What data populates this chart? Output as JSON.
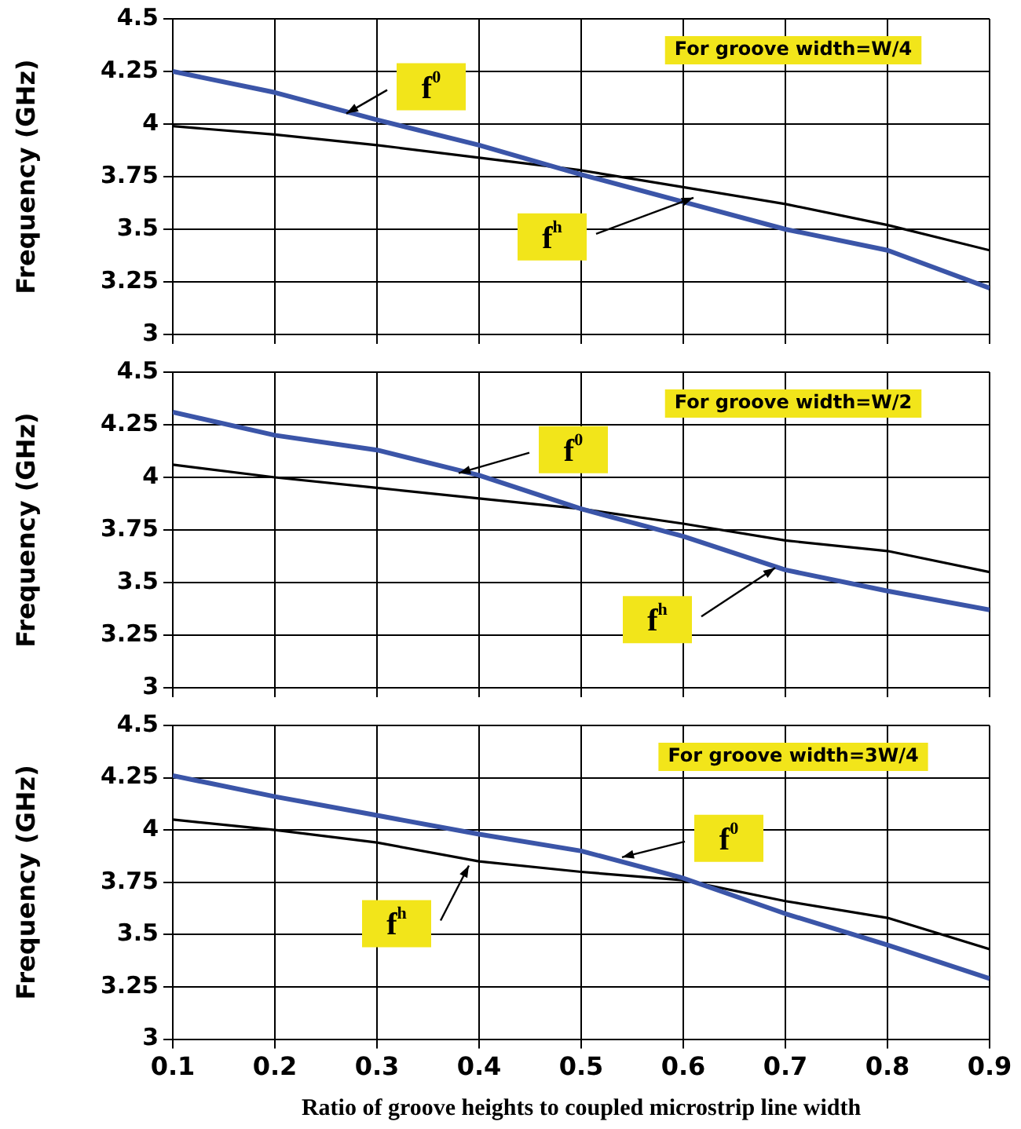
{
  "chart_data": [
    {
      "type": "line",
      "x": [
        0.1,
        0.2,
        0.3,
        0.4,
        0.5,
        0.6,
        0.7,
        0.8,
        0.9
      ],
      "ylabel": "Frequency (GHz)",
      "xlim": [
        0.1,
        0.9
      ],
      "xticks": [
        0.1,
        0.2,
        0.3,
        0.4,
        0.5,
        0.6,
        0.7,
        0.8,
        0.9
      ],
      "ylim": [
        3,
        4.5
      ],
      "yticks": [
        3,
        3.25,
        3.5,
        3.75,
        4,
        4.25,
        4.5
      ],
      "grid": true,
      "legend": false,
      "marker": "none",
      "tick_labels": "y",
      "series": [
        {
          "color": "#3b55a8",
          "values": [
            4.25,
            4.15,
            4.02,
            3.9,
            3.76,
            3.63,
            3.5,
            3.4,
            3.22
          ]
        },
        {
          "color": "#000000",
          "values": [
            3.99,
            3.95,
            3.9,
            3.84,
            3.78,
            3.7,
            3.62,
            3.52,
            3.4
          ]
        }
      ],
      "annotations": [
        "For groove width=W/4",
        {
          "text": "f$^{0}$",
          "x": 0.27,
          "y": 4.05
        },
        {
          "text": "f$^{h}$",
          "x": 0.61,
          "y": 3.65
        }
      ]
    },
    {
      "type": "line",
      "x": [
        0.1,
        0.2,
        0.3,
        0.4,
        0.5,
        0.6,
        0.7,
        0.8,
        0.9
      ],
      "ylabel": "Frequency (GHz)",
      "xlim": [
        0.1,
        0.9
      ],
      "xticks": [
        0.1,
        0.2,
        0.3,
        0.4,
        0.5,
        0.6,
        0.7,
        0.8,
        0.9
      ],
      "ylim": [
        3,
        4.5
      ],
      "yticks": [
        3,
        3.25,
        3.5,
        3.75,
        4,
        4.25,
        4.5
      ],
      "grid": true,
      "legend": false,
      "marker": "none",
      "tick_labels": "y",
      "series": [
        {
          "color": "#3b55a8",
          "values": [
            4.31,
            4.2,
            4.13,
            4.01,
            3.85,
            3.72,
            3.56,
            3.46,
            3.37
          ]
        },
        {
          "color": "#000000",
          "values": [
            4.06,
            4.0,
            3.95,
            3.9,
            3.85,
            3.78,
            3.7,
            3.65,
            3.55
          ]
        }
      ],
      "annotations": [
        "For groove width=W/2",
        {
          "text": "f$^{0}$",
          "x": 0.38,
          "y": 4.02
        },
        {
          "text": "f$^{h}$",
          "x": 0.69,
          "y": 3.57
        }
      ]
    },
    {
      "type": "line",
      "x": [
        0.1,
        0.2,
        0.3,
        0.4,
        0.5,
        0.6,
        0.7,
        0.8,
        0.9
      ],
      "xlabel": "Ratio of groove heights to coupled microstrip line width",
      "ylabel": "Frequency (GHz)",
      "xlim": [
        0.1,
        0.9
      ],
      "xticks": [
        0.1,
        0.2,
        0.3,
        0.4,
        0.5,
        0.6,
        0.7,
        0.8,
        0.9
      ],
      "ylim": [
        3,
        4.5
      ],
      "yticks": [
        3,
        3.25,
        3.5,
        3.75,
        4,
        4.25,
        4.5
      ],
      "grid": true,
      "legend": false,
      "marker": "none",
      "series": [
        {
          "color": "#3b55a8",
          "values": [
            4.26,
            4.16,
            4.07,
            3.98,
            3.9,
            3.77,
            3.6,
            3.45,
            3.29
          ]
        },
        {
          "color": "#000000",
          "values": [
            4.05,
            4.0,
            3.94,
            3.85,
            3.8,
            3.76,
            3.66,
            3.58,
            3.43
          ]
        }
      ],
      "annotations": [
        "For groove width=3W/4",
        {
          "text": "f$^{0}$",
          "x": 0.54,
          "y": 3.87
        },
        {
          "text": "f$^{h}$",
          "x": 0.39,
          "y": 3.83
        }
      ]
    }
  ]
}
